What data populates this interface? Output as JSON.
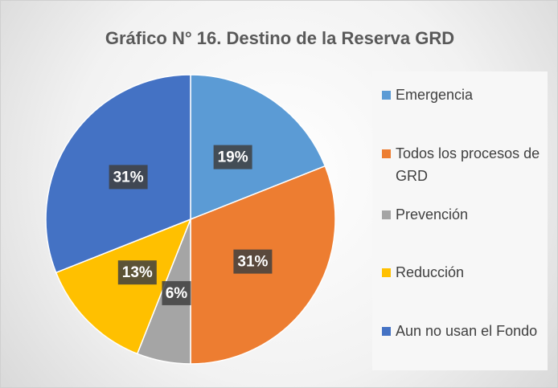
{
  "chart_data": {
    "type": "pie",
    "title": "Gráfico N° 16. Destino de la Reserva GRD",
    "categories": [
      "Emergencia",
      "Todos los procesos de GRD",
      "Prevención",
      "Reducción",
      "Aun no usan el Fondo"
    ],
    "values": [
      19,
      31,
      6,
      13,
      31
    ],
    "value_labels": [
      "19%",
      "31%",
      "6%",
      "13%",
      "31%"
    ],
    "colors": [
      "#5b9bd5",
      "#ed7d31",
      "#a5a5a5",
      "#ffc000",
      "#4472c4"
    ],
    "legend": "right"
  }
}
